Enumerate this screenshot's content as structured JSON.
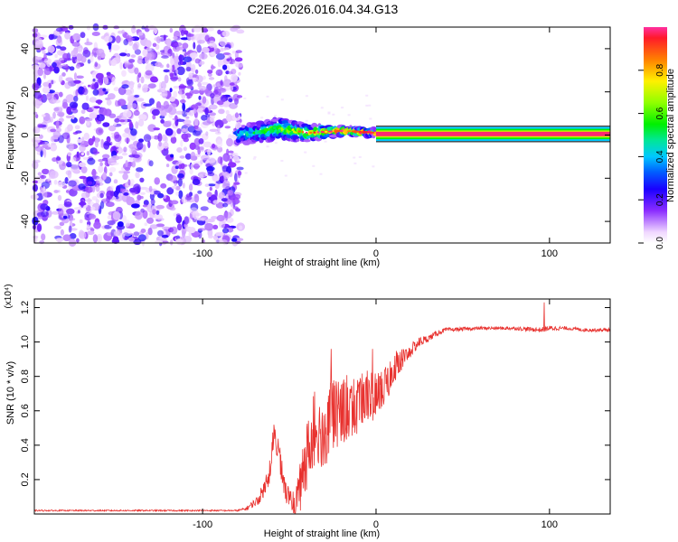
{
  "title": "C2E6.2026.016.04.34.G13",
  "colors": {
    "snr_line": "#e8312e",
    "signal_core": "#ff2a3a",
    "noise": "#5b16e8",
    "frame": "#000000"
  },
  "chart_data": [
    {
      "type": "heatmap",
      "title": "C2E6.2026.016.04.34.G13",
      "xlabel": "Height of straight line (km)",
      "ylabel": "Frequency (Hz)",
      "xlim": [
        -197,
        135
      ],
      "ylim": [
        -50,
        50
      ],
      "x_ticks": [
        -100,
        0,
        100
      ],
      "x_tick_labels": [
        "-100",
        "0",
        "100"
      ],
      "y_ticks": [
        -40,
        -20,
        0,
        20,
        40
      ],
      "y_tick_labels": [
        "-40",
        "-20",
        "0",
        "20",
        "40"
      ],
      "colorbar": {
        "label": "Normalized spectral amplitude",
        "range": [
          0,
          1
        ],
        "ticks": [
          0.0,
          0.2,
          0.4,
          0.6,
          0.8
        ],
        "tick_labels": [
          "0.0",
          "0.2",
          "0.4",
          "0.6",
          "0.8"
        ],
        "stops": [
          {
            "v": 0.0,
            "color": "#ffffff"
          },
          {
            "v": 0.05,
            "color": "#f0d8ff"
          },
          {
            "v": 0.15,
            "color": "#8a2cff"
          },
          {
            "v": 0.25,
            "color": "#1a00ff"
          },
          {
            "v": 0.33,
            "color": "#0060ff"
          },
          {
            "v": 0.4,
            "color": "#00c8ff"
          },
          {
            "v": 0.48,
            "color": "#00e890"
          },
          {
            "v": 0.55,
            "color": "#00f000"
          },
          {
            "v": 0.65,
            "color": "#90ff00"
          },
          {
            "v": 0.75,
            "color": "#fff000"
          },
          {
            "v": 0.85,
            "color": "#ff8000"
          },
          {
            "v": 0.95,
            "color": "#ff1a2a"
          },
          {
            "v": 1.0,
            "color": "#ff30a0"
          }
        ]
      },
      "regions": [
        {
          "name": "noise",
          "x_range": [
            -197,
            -78
          ],
          "freq_range": [
            -50,
            50
          ],
          "amplitude": [
            0.02,
            0.25
          ]
        },
        {
          "name": "transition",
          "x_range": [
            -80,
            0
          ],
          "center_freq": [
            [
              -78,
              0
            ],
            [
              -55,
              3
            ],
            [
              -40,
              1
            ],
            [
              -20,
              2
            ],
            [
              0,
              1
            ]
          ],
          "half_width_hz": [
            [
              -78,
              4
            ],
            [
              -55,
              5
            ],
            [
              -20,
              2
            ],
            [
              0,
              1.5
            ]
          ]
        },
        {
          "name": "line",
          "x_range": [
            0,
            135
          ],
          "center_freq": 0.5,
          "half_width_hz": 1.5,
          "amplitude": 1.0
        }
      ]
    },
    {
      "type": "line",
      "xlabel": "Height of straight line (km)",
      "ylabel": "SNR (10 * v/v)",
      "y_scale_label": "(x10⁴)",
      "xlim": [
        -197,
        135
      ],
      "ylim": [
        0,
        1.25
      ],
      "x_ticks": [
        -100,
        0,
        100
      ],
      "x_tick_labels": [
        "-100",
        "0",
        "100"
      ],
      "y_ticks": [
        0.2,
        0.4,
        0.6,
        0.8,
        1.0,
        1.2
      ],
      "y_tick_labels": [
        "0.2",
        "0.4",
        "0.6",
        "0.8",
        "1.0",
        "1.2"
      ],
      "series": [
        {
          "name": "SNR",
          "x": [
            -197,
            -120,
            -80,
            -75,
            -68,
            -62,
            -59,
            -56,
            -53,
            -50,
            -47,
            -44,
            -40,
            -37,
            -34,
            -30,
            -26,
            -20,
            -10,
            0,
            5,
            10,
            15,
            20,
            25,
            30,
            35,
            40,
            60,
            80,
            95,
            100,
            110,
            120,
            135
          ],
          "y": [
            0.02,
            0.02,
            0.02,
            0.03,
            0.08,
            0.2,
            0.45,
            0.35,
            0.15,
            0.1,
            0.05,
            0.15,
            0.35,
            0.45,
            0.5,
            0.45,
            0.55,
            0.6,
            0.65,
            0.7,
            0.75,
            0.85,
            0.9,
            0.95,
            1.0,
            1.02,
            1.05,
            1.07,
            1.08,
            1.08,
            1.07,
            1.08,
            1.08,
            1.07,
            1.07
          ],
          "jitter": [
            0.004,
            0.004,
            0.004,
            0.01,
            0.03,
            0.06,
            0.07,
            0.07,
            0.06,
            0.05,
            0.06,
            0.12,
            0.18,
            0.2,
            0.2,
            0.2,
            0.2,
            0.18,
            0.15,
            0.12,
            0.1,
            0.08,
            0.06,
            0.04,
            0.03,
            0.02,
            0.015,
            0.012,
            0.01,
            0.01,
            0.015,
            0.015,
            0.01,
            0.01,
            0.01
          ],
          "spikes": [
            {
              "x": -26,
              "y": 0.96
            },
            {
              "x": -2,
              "y": 0.96
            },
            {
              "x": 97,
              "y": 1.23
            }
          ]
        }
      ]
    }
  ]
}
